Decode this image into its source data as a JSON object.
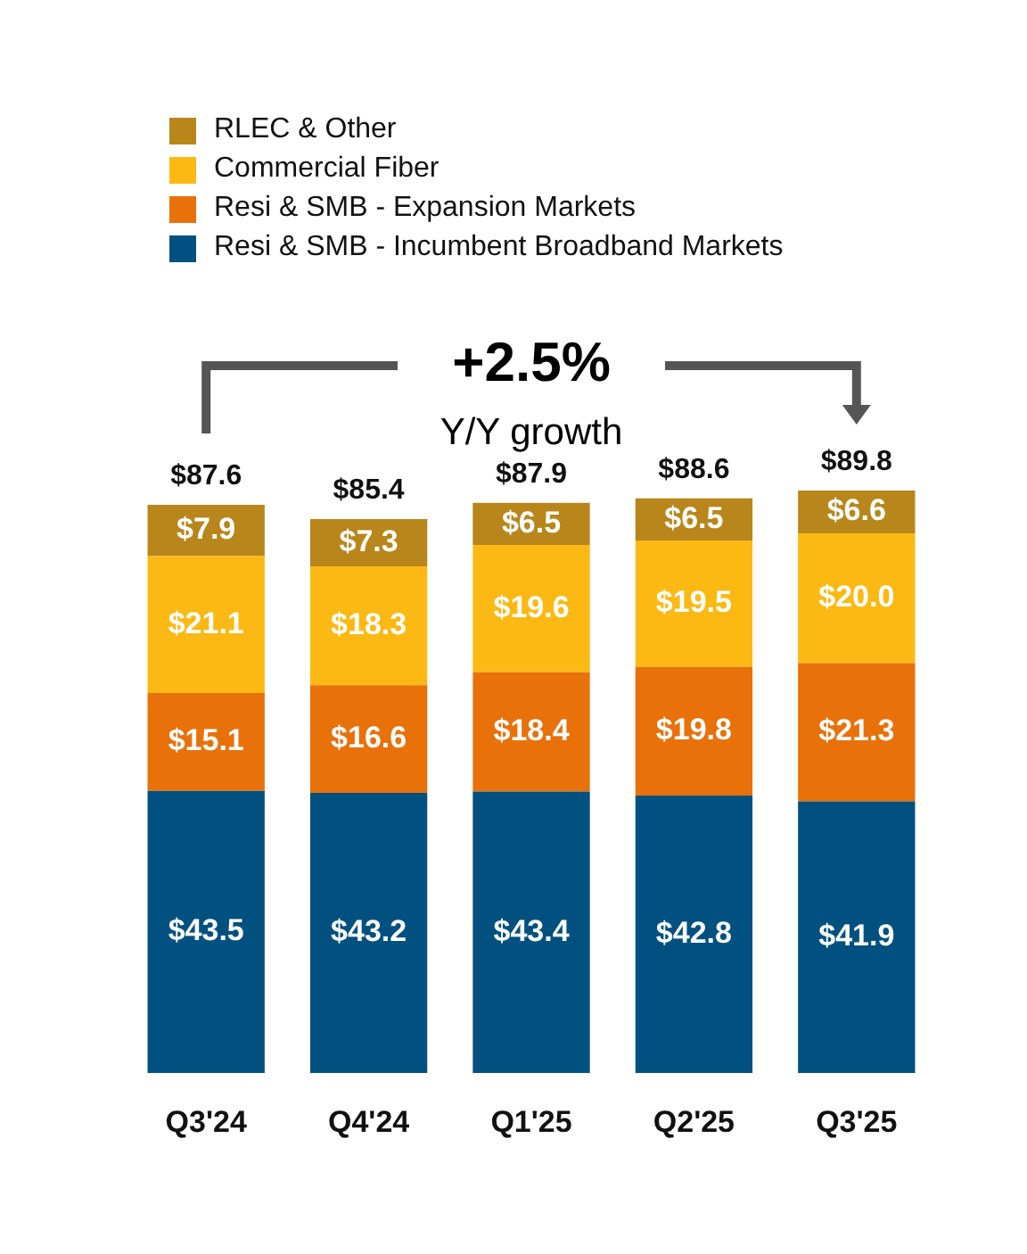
{
  "chart_data": {
    "type": "bar",
    "stacked": true,
    "categories": [
      "Q3'24",
      "Q4'24",
      "Q1'25",
      "Q2'25",
      "Q3'25"
    ],
    "series": [
      {
        "name": "Resi & SMB - Incumbent Broadband Markets",
        "color": "#00517f",
        "values": [
          43.5,
          43.2,
          43.4,
          42.8,
          41.9
        ],
        "value_labels": [
          "$43.5",
          "$43.2",
          "$43.4",
          "$42.8",
          "$41.9"
        ]
      },
      {
        "name": "Resi & SMB - Expansion Markets",
        "color": "#e8710a",
        "values": [
          15.1,
          16.6,
          18.4,
          19.8,
          21.3
        ],
        "value_labels": [
          "$15.1",
          "$16.6",
          "$18.4",
          "$19.8",
          "$21.3"
        ]
      },
      {
        "name": "Commercial Fiber",
        "color": "#fdb913",
        "values": [
          21.1,
          18.3,
          19.6,
          19.5,
          20.0
        ],
        "value_labels": [
          "$21.1",
          "$18.3",
          "$19.6",
          "$19.5",
          "$20.0"
        ]
      },
      {
        "name": "RLEC & Other",
        "color": "#b8861b",
        "values": [
          7.9,
          7.3,
          6.5,
          6.5,
          6.6
        ],
        "value_labels": [
          "$7.9",
          "$7.3",
          "$6.5",
          "$6.5",
          "$6.6"
        ]
      }
    ],
    "totals": [
      "$87.6",
      "$85.4",
      "$87.9",
      "$88.6",
      "$89.8"
    ],
    "annotations": [
      "+2.5%",
      "Y/Y growth"
    ],
    "legend": "top left",
    "grid": false
  }
}
